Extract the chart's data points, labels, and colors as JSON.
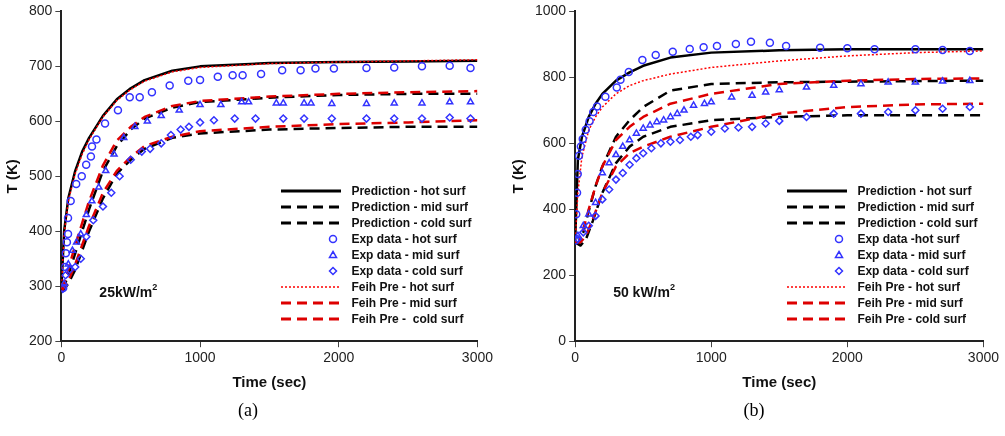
{
  "chart_data": [
    {
      "type": "line",
      "xlabel": "Time (sec)",
      "ylabel": "T (K)",
      "xlim": [
        0,
        3000
      ],
      "xticks": [
        0,
        1000,
        2000,
        3000
      ],
      "ylim": [
        200,
        800
      ],
      "yticks": [
        200,
        300,
        400,
        500,
        600,
        700,
        800
      ],
      "grid": false,
      "legend": "bottom right",
      "annotations": [
        "25kW/m$^{2}$",
        "(a)"
      ],
      "series": [
        {
          "name": "Prediction - hot surf",
          "color": "#000000",
          "line_style": "solid",
          "x": [
            0,
            20,
            50,
            100,
            150,
            200,
            300,
            400,
            500,
            600,
            800,
            1000,
            1500,
            2000,
            2500,
            3000
          ],
          "values": [
            295,
            400,
            460,
            510,
            545,
            570,
            610,
            640,
            660,
            675,
            692,
            700,
            706,
            708,
            709,
            710
          ]
        },
        {
          "name": "Prediction - mid surf",
          "color": "#000000",
          "line_style": "dashed",
          "x": [
            0,
            20,
            50,
            100,
            150,
            200,
            300,
            400,
            500,
            600,
            800,
            1000,
            1500,
            2000,
            2500,
            3000
          ],
          "values": [
            295,
            300,
            320,
            360,
            400,
            440,
            510,
            555,
            585,
            605,
            625,
            635,
            643,
            648,
            650,
            650
          ]
        },
        {
          "name": "Prediction - cold surf",
          "color": "#000000",
          "line_style": "dashed",
          "x": [
            0,
            20,
            50,
            100,
            150,
            200,
            300,
            400,
            500,
            600,
            800,
            1000,
            1500,
            2000,
            2500,
            3000
          ],
          "values": [
            290,
            295,
            305,
            330,
            365,
            400,
            460,
            505,
            530,
            550,
            570,
            578,
            585,
            588,
            590,
            590
          ]
        },
        {
          "name": "Exp data - hot surf",
          "type": "scatter",
          "marker": "circle",
          "color": "#3333ff",
          "x": [
            13,
            27,
            32,
            40,
            48,
            48,
            67,
            107,
            147,
            179,
            213,
            221,
            253,
            315,
            408,
            493,
            565,
            653,
            781,
            915,
            1000,
            1128,
            1235,
            1307,
            1440,
            1592,
            1725,
            1832,
            1965,
            2200,
            2400,
            2600,
            2800,
            2950
          ],
          "values": [
            297,
            335,
            360,
            380,
            395,
            424,
            455,
            486,
            500,
            521,
            536,
            554,
            567,
            596,
            620,
            644,
            644,
            653,
            665,
            674,
            675,
            681,
            684,
            684,
            686,
            693,
            693,
            696,
            696,
            697,
            698,
            700,
            701,
            697
          ]
        },
        {
          "name": "Exp data - mid surf",
          "type": "scatter",
          "marker": "triangle",
          "color": "#3333ff",
          "x": [
            20,
            50,
            80,
            110,
            140,
            180,
            220,
            270,
            320,
            380,
            450,
            530,
            620,
            720,
            850,
            1000,
            1150,
            1300,
            1350,
            1550,
            1600,
            1750,
            1800,
            1950,
            2200,
            2400,
            2600,
            2800,
            2950
          ],
          "values": [
            305,
            340,
            365,
            380,
            395,
            430,
            455,
            480,
            510,
            540,
            570,
            590,
            600,
            610,
            620,
            630,
            630,
            635,
            635,
            633,
            633,
            633,
            633,
            632,
            632,
            633,
            633,
            635,
            635
          ]
        },
        {
          "name": "Exp data - cold surf",
          "type": "scatter",
          "marker": "diamond",
          "color": "#3333ff",
          "x": [
            10,
            30,
            60,
            100,
            140,
            180,
            230,
            300,
            360,
            420,
            500,
            580,
            640,
            720,
            790,
            860,
            920,
            1000,
            1100,
            1250,
            1400,
            1600,
            1750,
            1950,
            2200,
            2400,
            2600,
            2800,
            2950
          ],
          "values": [
            295,
            320,
            330,
            335,
            350,
            390,
            420,
            445,
            470,
            500,
            530,
            545,
            550,
            560,
            575,
            585,
            590,
            598,
            602,
            605,
            605,
            605,
            605,
            605,
            605,
            605,
            605,
            607,
            605
          ]
        },
        {
          "name": "Feih Pre - hot surf",
          "color": "#ff0000",
          "line_style": "dotted",
          "x": [
            0,
            20,
            50,
            100,
            150,
            200,
            300,
            400,
            500,
            600,
            800,
            1000,
            1500,
            2000,
            2500,
            3000
          ],
          "values": [
            295,
            395,
            455,
            505,
            540,
            567,
            608,
            638,
            658,
            673,
            690,
            698,
            705,
            708,
            710,
            712
          ]
        },
        {
          "name": "Feih Pre - mid surf",
          "color": "#dd0000",
          "line_style": "dashed",
          "x": [
            0,
            20,
            50,
            100,
            150,
            200,
            300,
            400,
            500,
            600,
            800,
            1000,
            1500,
            2000,
            2500,
            3000
          ],
          "values": [
            295,
            305,
            330,
            375,
            415,
            455,
            520,
            565,
            590,
            608,
            628,
            637,
            645,
            650,
            653,
            655
          ]
        },
        {
          "name": "Feih Pre -  cold surf",
          "color": "#dd0000",
          "line_style": "dashed",
          "x": [
            0,
            20,
            50,
            100,
            150,
            200,
            300,
            400,
            500,
            600,
            800,
            1000,
            1500,
            2000,
            2500,
            3000
          ],
          "values": [
            290,
            298,
            310,
            340,
            375,
            410,
            470,
            510,
            535,
            555,
            572,
            582,
            590,
            595,
            598,
            602
          ]
        }
      ]
    },
    {
      "type": "line",
      "xlabel": "Time (sec)",
      "ylabel": "T (K)",
      "xlim": [
        0,
        3000
      ],
      "xticks": [
        0,
        1000,
        2000,
        3000
      ],
      "ylim": [
        0,
        1000
      ],
      "yticks": [
        0,
        200,
        400,
        600,
        800,
        1000
      ],
      "grid": false,
      "legend": "bottom right",
      "annotations": [
        "50 kW/m$^{2}$",
        "(b)"
      ],
      "series": [
        {
          "name": "Prediction - hot surf",
          "color": "#000000",
          "line_style": "solid",
          "x": [
            0,
            20,
            50,
            100,
            150,
            200,
            300,
            400,
            500,
            700,
            1000,
            1500,
            2000,
            3000
          ],
          "values": [
            300,
            550,
            620,
            680,
            720,
            750,
            790,
            815,
            835,
            860,
            875,
            882,
            885,
            885
          ]
        },
        {
          "name": "Prediction - mid surf",
          "color": "#000000",
          "line_style": "dashed",
          "x": [
            0,
            30,
            60,
            100,
            150,
            200,
            300,
            400,
            500,
            700,
            1000,
            1500,
            2000,
            3000
          ],
          "values": [
            300,
            295,
            330,
            395,
            470,
            530,
            620,
            670,
            710,
            760,
            780,
            785,
            787,
            790
          ]
        },
        {
          "name": "Prediction - cold surf",
          "color": "#000000",
          "line_style": "dashed",
          "x": [
            0,
            40,
            80,
            130,
            200,
            300,
            400,
            500,
            700,
            1000,
            1500,
            2000,
            3000
          ],
          "values": [
            300,
            290,
            310,
            365,
            450,
            540,
            590,
            620,
            650,
            670,
            680,
            685,
            685
          ]
        },
        {
          "name": "Exp data -hot surf",
          "type": "scatter",
          "marker": "circle",
          "color": "#3333ff",
          "x": [
            0,
            8,
            14,
            19,
            28,
            42,
            56,
            78,
            106,
            133,
            161,
            222,
            306,
            333,
            394,
            494,
            592,
            717,
            842,
            944,
            1042,
            1181,
            1292,
            1431,
            1550,
            1800,
            2000,
            2200,
            2500,
            2700,
            2900
          ],
          "values": [
            305,
            385,
            450,
            507,
            562,
            590,
            613,
            641,
            667,
            695,
            712,
            741,
            769,
            793,
            816,
            853,
            868,
            878,
            886,
            891,
            895,
            901,
            908,
            905,
            895,
            890,
            888,
            885,
            885,
            883,
            880
          ]
        },
        {
          "name": "Exp data - mid surf",
          "type": "scatter",
          "marker": "triangle",
          "color": "#3333ff",
          "x": [
            20,
            60,
            100,
            150,
            200,
            250,
            300,
            350,
            400,
            450,
            500,
            550,
            600,
            650,
            700,
            750,
            800,
            870,
            950,
            1000,
            1150,
            1300,
            1400,
            1500,
            1700,
            1900,
            2100,
            2300,
            2500,
            2700,
            2900
          ],
          "values": [
            320,
            350,
            385,
            420,
            510,
            540,
            565,
            590,
            610,
            630,
            645,
            655,
            665,
            670,
            680,
            690,
            700,
            715,
            720,
            725,
            740,
            745,
            755,
            762,
            770,
            775,
            780,
            785,
            785,
            788,
            790
          ]
        },
        {
          "name": "Exp data - cold surf",
          "type": "scatter",
          "marker": "diamond",
          "color": "#3333ff",
          "x": [
            20,
            60,
            100,
            150,
            200,
            250,
            300,
            350,
            400,
            450,
            500,
            560,
            630,
            700,
            770,
            850,
            900,
            1000,
            1100,
            1200,
            1300,
            1400,
            1500,
            1700,
            1900,
            2100,
            2300,
            2500,
            2700,
            2900
          ],
          "values": [
            310,
            330,
            350,
            380,
            430,
            460,
            490,
            510,
            535,
            555,
            570,
            585,
            600,
            605,
            610,
            620,
            625,
            635,
            645,
            648,
            650,
            660,
            668,
            680,
            690,
            690,
            695,
            700,
            705,
            710
          ]
        },
        {
          "name": "Feih Pre - hot surf",
          "color": "#ff0000",
          "line_style": "dotted",
          "x": [
            0,
            20,
            50,
            100,
            150,
            200,
            300,
            400,
            500,
            700,
            1000,
            1500,
            2000,
            2500,
            3000
          ],
          "values": [
            300,
            450,
            560,
            640,
            680,
            710,
            750,
            775,
            790,
            810,
            830,
            850,
            865,
            875,
            880
          ]
        },
        {
          "name": "Feih Pre - mid surf",
          "color": "#dd0000",
          "line_style": "dashed",
          "x": [
            0,
            30,
            60,
            100,
            150,
            200,
            300,
            400,
            500,
            700,
            1000,
            1500,
            2000,
            2500,
            3000
          ],
          "values": [
            300,
            300,
            340,
            400,
            470,
            530,
            610,
            650,
            680,
            720,
            750,
            780,
            790,
            795,
            797
          ]
        },
        {
          "name": "Feih Pre - cold surf",
          "color": "#dd0000",
          "line_style": "dashed",
          "x": [
            0,
            40,
            80,
            130,
            200,
            300,
            400,
            500,
            700,
            1000,
            1500,
            2000,
            2500,
            3000
          ],
          "values": [
            300,
            300,
            320,
            370,
            450,
            530,
            570,
            590,
            620,
            650,
            690,
            710,
            718,
            720
          ]
        }
      ]
    }
  ]
}
